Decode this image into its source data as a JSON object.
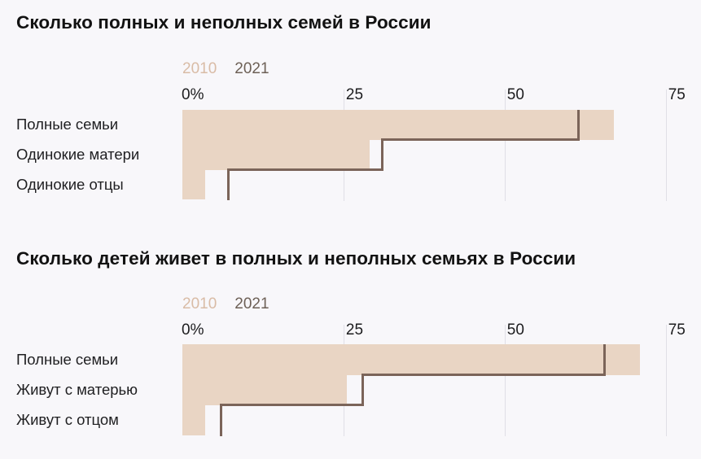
{
  "page": {
    "background_color": "#f8f7fa",
    "axis_unit": "percent"
  },
  "colors": {
    "bar_2010_fill": "#e9d5c4",
    "line_2021": "#7b6459",
    "legend_2010_text": "#d9bca6",
    "legend_2021_text": "#6d6056",
    "gridline": "rgba(116,116,140,0.18)",
    "title_text": "#121212",
    "label_text": "#1f1f21"
  },
  "chart_data": [
    {
      "type": "bar",
      "orientation": "horizontal",
      "title": "Сколько полных и неполных семей в России",
      "categories": [
        "Полные семьи",
        "Одинокие матери",
        "Одинокие отцы"
      ],
      "series": [
        {
          "name": "2010",
          "style": "filled-bar",
          "values": [
            67,
            29,
            3.5
          ]
        },
        {
          "name": "2021",
          "style": "step-line",
          "values": [
            61.5,
            31,
            7.2
          ]
        }
      ],
      "x_ticks": [
        {
          "value": 0,
          "label": "0%"
        },
        {
          "value": 25,
          "label": "25"
        },
        {
          "value": 50,
          "label": "50"
        },
        {
          "value": 75,
          "label": "75"
        }
      ],
      "xlim": [
        0,
        80
      ],
      "grid": "vertical",
      "legend_position": "top"
    },
    {
      "type": "bar",
      "orientation": "horizontal",
      "title": "Сколько детей живет в полных и неполных семьях в России",
      "categories": [
        "Полные семьи",
        "Живут с матерью",
        "Живут с отцом"
      ],
      "series": [
        {
          "name": "2010",
          "style": "filled-bar",
          "values": [
            71,
            25.5,
            3.5
          ]
        },
        {
          "name": "2021",
          "style": "step-line",
          "values": [
            65.5,
            28,
            6
          ]
        }
      ],
      "x_ticks": [
        {
          "value": 0,
          "label": "0%"
        },
        {
          "value": 25,
          "label": "25"
        },
        {
          "value": 50,
          "label": "50"
        },
        {
          "value": 75,
          "label": "75"
        }
      ],
      "xlim": [
        0,
        80
      ],
      "grid": "vertical",
      "legend_position": "top"
    }
  ]
}
